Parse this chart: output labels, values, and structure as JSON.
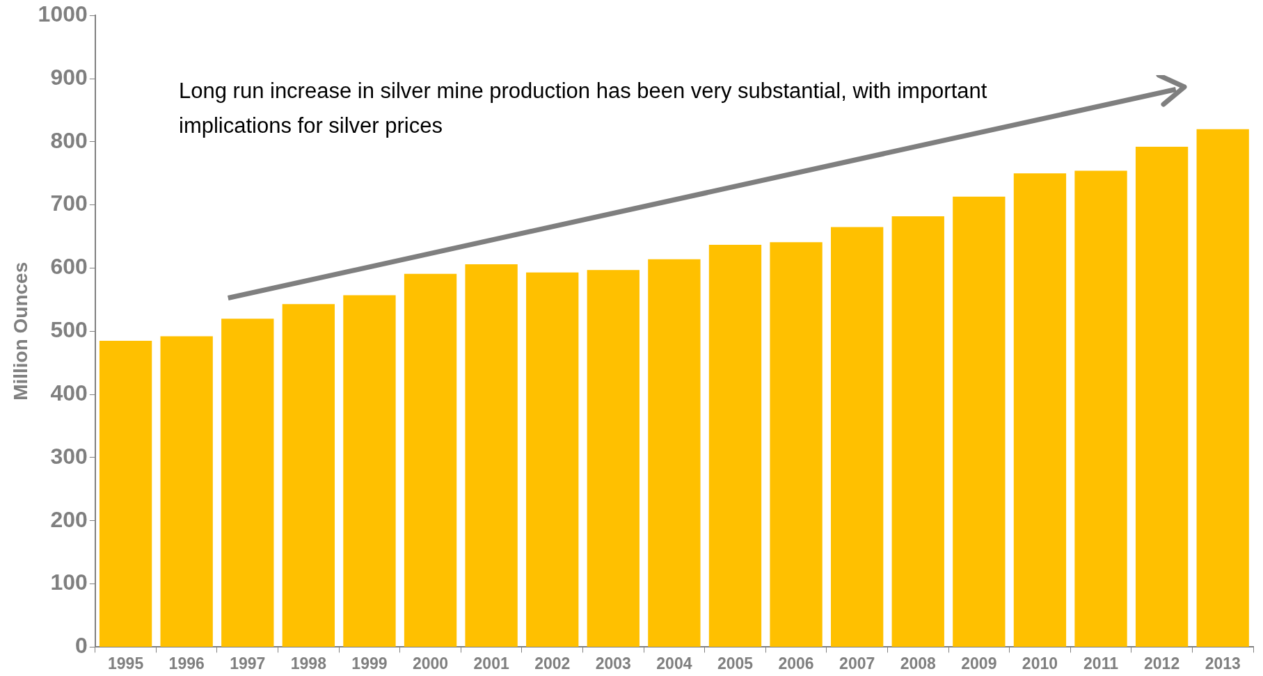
{
  "chart_data": {
    "type": "bar",
    "ylabel": "Million Ounces",
    "categories": [
      "1995",
      "1996",
      "1997",
      "1998",
      "1999",
      "2000",
      "2001",
      "2002",
      "2003",
      "2004",
      "2005",
      "2006",
      "2007",
      "2008",
      "2009",
      "2010",
      "2011",
      "2012",
      "2013"
    ],
    "values": [
      485,
      492,
      520,
      543,
      557,
      591,
      606,
      593,
      597,
      614,
      637,
      641,
      665,
      682,
      713,
      750,
      754,
      792,
      820
    ],
    "color": "#ffc000",
    "ylim": [
      0,
      1000
    ],
    "yticks": [
      0,
      100,
      200,
      300,
      400,
      500,
      600,
      700,
      800,
      900,
      1000
    ],
    "grid": false,
    "legend": false,
    "annotations": [
      "Long run increase in silver mine production has been very substantial, with important implications for silver prices"
    ]
  }
}
